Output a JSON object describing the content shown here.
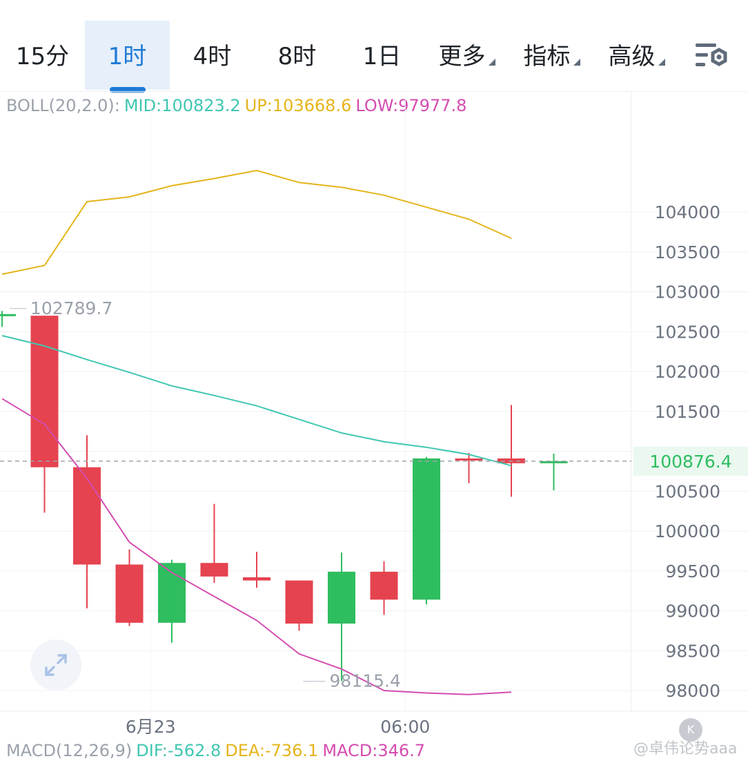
{
  "tabs": [
    {
      "label": "15分",
      "active": false,
      "dropdown": false
    },
    {
      "label": "1时",
      "active": true,
      "dropdown": false
    },
    {
      "label": "4时",
      "active": false,
      "dropdown": false
    },
    {
      "label": "8时",
      "active": false,
      "dropdown": false
    },
    {
      "label": "1日",
      "active": false,
      "dropdown": false
    },
    {
      "label": "更多",
      "active": false,
      "dropdown": true
    },
    {
      "label": "指标",
      "active": false,
      "dropdown": true
    },
    {
      "label": "高级",
      "active": false,
      "dropdown": true
    }
  ],
  "settings_icon": "chart-settings-icon",
  "boll": {
    "name": "BOLL(20,2.0):",
    "mid": "MID:100823.2",
    "up": "UP:103668.6",
    "low": "LOW:97977.8"
  },
  "macd": {
    "name": "MACD(12,26,9)",
    "dif": "DIF:-562.8",
    "dea": "DEA:-736.1",
    "macd": "MACD:346.7"
  },
  "colors": {
    "up_candle": "#2ebd5f",
    "down_candle": "#e5434f",
    "boll_mid": "#3fc6b0",
    "boll_up": "#e5b41a",
    "boll_low": "#d44cb0",
    "active_tab": "#1f7ad6",
    "current_price": "#2ebd5f"
  },
  "watermark": "@卓伟论势aaa",
  "chart_data": {
    "type": "candlestick",
    "y_ticks": [
      104000,
      103500,
      103000,
      102500,
      102000,
      101500,
      101000,
      100500,
      100000,
      99500,
      99000,
      98500,
      98000
    ],
    "y_tick_labels": [
      "104000",
      "103500",
      "103000",
      "102500",
      "102000",
      "101500",
      "",
      "100500",
      "100000",
      "99500",
      "99000",
      "98500",
      "98000"
    ],
    "ylim": [
      97750,
      105500
    ],
    "x_labels": [
      {
        "label": "6月23",
        "index": 3.5
      },
      {
        "label": "06:00",
        "index": 9.5
      }
    ],
    "current_price": 100876.4,
    "current_price_label": "100876.4",
    "high_marker": {
      "label": "102789.7",
      "value": 102789.7,
      "index": -0.5
    },
    "low_marker": {
      "label": "98115.4",
      "value": 98115.4,
      "index": 7
    },
    "candles": [
      {
        "open": 102720,
        "high": 102760,
        "low": 102560,
        "close": 102720
      },
      {
        "open": 102700,
        "high": 102700,
        "low": 100230,
        "close": 100800
      },
      {
        "open": 100800,
        "high": 101200,
        "low": 99030,
        "close": 99580
      },
      {
        "open": 99580,
        "high": 99770,
        "low": 98810,
        "close": 98850
      },
      {
        "open": 98850,
        "high": 99640,
        "low": 98600,
        "close": 99600
      },
      {
        "open": 99600,
        "high": 100340,
        "low": 99350,
        "close": 99430
      },
      {
        "open": 99420,
        "high": 99740,
        "low": 99290,
        "close": 99380
      },
      {
        "open": 99380,
        "high": 99380,
        "low": 98750,
        "close": 98840
      },
      {
        "open": 98840,
        "high": 99730,
        "low": 98120,
        "close": 99490
      },
      {
        "open": 99490,
        "high": 99620,
        "low": 98950,
        "close": 99140
      },
      {
        "open": 99140,
        "high": 100930,
        "low": 99080,
        "close": 100910
      },
      {
        "open": 100910,
        "high": 100980,
        "low": 100600,
        "close": 100900
      },
      {
        "open": 100910,
        "high": 101580,
        "low": 100430,
        "close": 100850
      },
      {
        "open": 100850,
        "high": 100970,
        "low": 100510,
        "close": 100876
      }
    ],
    "boll_up_values": [
      103220,
      103330,
      104130,
      104190,
      104330,
      104420,
      104520,
      104370,
      104310,
      104210,
      104060,
      103910,
      103670
    ],
    "boll_mid_values": [
      102450,
      102320,
      102150,
      101990,
      101820,
      101700,
      101570,
      101400,
      101230,
      101120,
      101050,
      100960,
      100820
    ],
    "boll_low_values": [
      101660,
      101340,
      100660,
      99860,
      99480,
      99180,
      98880,
      98460,
      98270,
      98000,
      97970,
      97950,
      97980
    ]
  }
}
